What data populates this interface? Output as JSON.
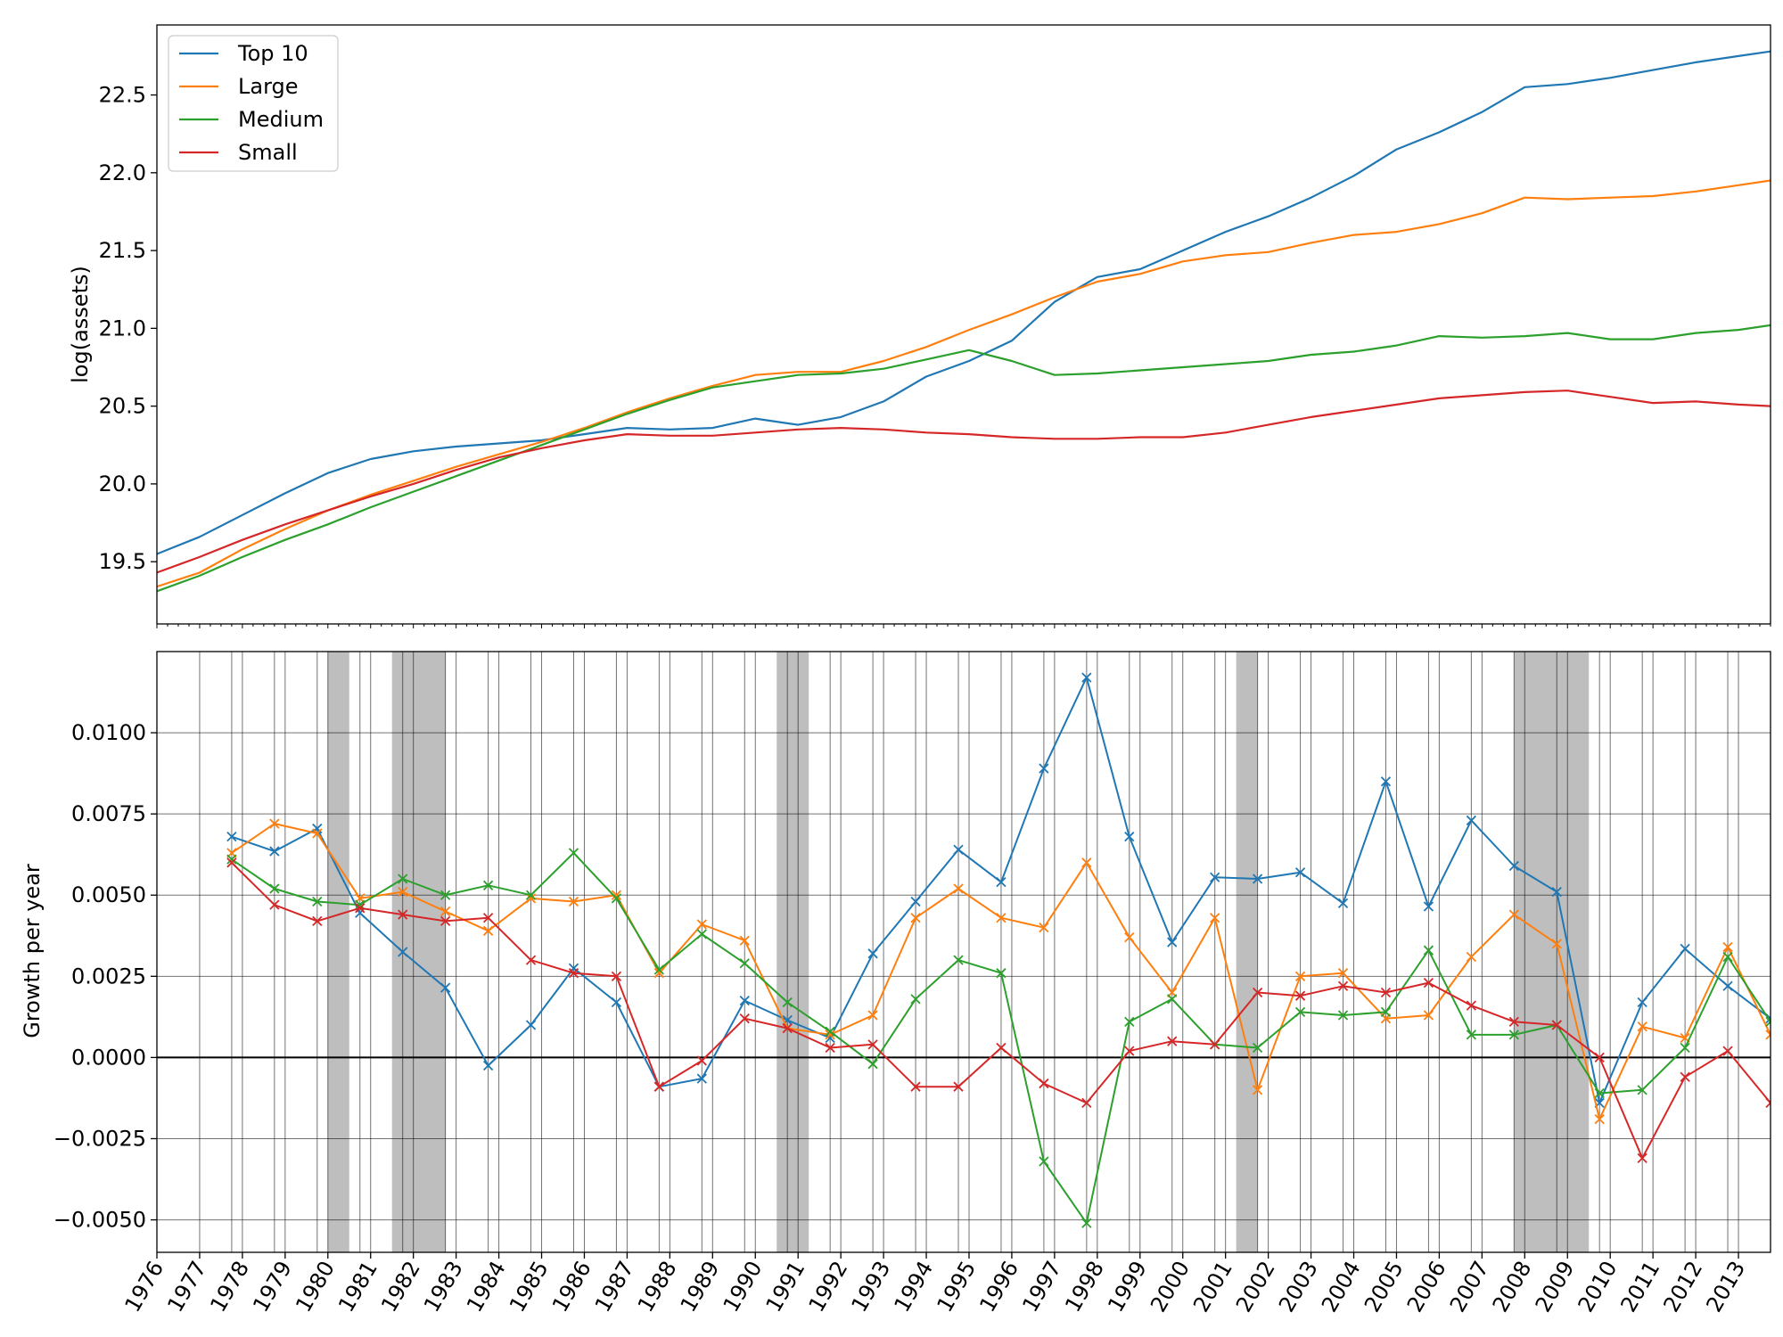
{
  "chart_data": [
    {
      "type": "line",
      "ylabel": "log(assets)",
      "xlabel": "",
      "xlim": [
        1976.0,
        2013.75
      ],
      "ylim": [
        19.1,
        22.95
      ],
      "yticks": [
        19.5,
        20.0,
        20.5,
        21.0,
        21.5,
        22.0,
        22.5
      ],
      "ytick_labels": [
        "19.5",
        "20.0",
        "20.5",
        "21.0",
        "21.5",
        "22.0",
        "22.5"
      ],
      "grid": false,
      "legend": "top-left",
      "series": [
        {
          "name": "Top 10",
          "color": "#1f77b4",
          "x": [
            1976.0,
            1977.0,
            1978.0,
            1979.0,
            1980.0,
            1981.0,
            1982.0,
            1983.0,
            1984.0,
            1985.0,
            1986.0,
            1987.0,
            1988.0,
            1989.0,
            1990.0,
            1991.0,
            1992.0,
            1993.0,
            1994.0,
            1995.0,
            1996.0,
            1997.0,
            1998.0,
            1999.0,
            2000.0,
            2001.0,
            2002.0,
            2003.0,
            2004.0,
            2005.0,
            2006.0,
            2007.0,
            2008.0,
            2009.0,
            2010.0,
            2011.0,
            2012.0,
            2013.0,
            2013.75
          ],
          "y": [
            19.55,
            19.66,
            19.8,
            19.94,
            20.07,
            20.16,
            20.21,
            20.24,
            20.26,
            20.28,
            20.32,
            20.36,
            20.35,
            20.36,
            20.42,
            20.38,
            20.43,
            20.53,
            20.69,
            20.79,
            20.92,
            21.17,
            21.33,
            21.38,
            21.5,
            21.62,
            21.72,
            21.84,
            21.98,
            22.15,
            22.26,
            22.39,
            22.55,
            22.57,
            22.61,
            22.66,
            22.71,
            22.75,
            22.78
          ]
        },
        {
          "name": "Large",
          "color": "#ff7f0e",
          "x": [
            1976.0,
            1977.0,
            1978.0,
            1979.0,
            1980.0,
            1981.0,
            1982.0,
            1983.0,
            1984.0,
            1985.0,
            1986.0,
            1987.0,
            1988.0,
            1989.0,
            1990.0,
            1991.0,
            1992.0,
            1993.0,
            1994.0,
            1995.0,
            1996.0,
            1997.0,
            1998.0,
            1999.0,
            2000.0,
            2001.0,
            2002.0,
            2003.0,
            2004.0,
            2005.0,
            2006.0,
            2007.0,
            2008.0,
            2009.0,
            2010.0,
            2011.0,
            2012.0,
            2013.0,
            2013.75
          ],
          "y": [
            19.34,
            19.43,
            19.58,
            19.71,
            19.83,
            19.93,
            20.02,
            20.11,
            20.19,
            20.27,
            20.36,
            20.46,
            20.55,
            20.63,
            20.7,
            20.72,
            20.72,
            20.79,
            20.88,
            20.99,
            21.09,
            21.2,
            21.3,
            21.35,
            21.43,
            21.47,
            21.49,
            21.55,
            21.6,
            21.62,
            21.67,
            21.74,
            21.84,
            21.83,
            21.84,
            21.85,
            21.88,
            21.92,
            21.95
          ]
        },
        {
          "name": "Medium",
          "color": "#2ca02c",
          "x": [
            1976.0,
            1977.0,
            1978.0,
            1979.0,
            1980.0,
            1981.0,
            1982.0,
            1983.0,
            1984.0,
            1985.0,
            1986.0,
            1987.0,
            1988.0,
            1989.0,
            1990.0,
            1991.0,
            1992.0,
            1993.0,
            1994.0,
            1995.0,
            1996.0,
            1997.0,
            1998.0,
            1999.0,
            2000.0,
            2001.0,
            2002.0,
            2003.0,
            2004.0,
            2005.0,
            2006.0,
            2007.0,
            2008.0,
            2009.0,
            2010.0,
            2011.0,
            2012.0,
            2013.0,
            2013.75
          ],
          "y": [
            19.31,
            19.41,
            19.53,
            19.64,
            19.74,
            19.85,
            19.95,
            20.05,
            20.15,
            20.25,
            20.35,
            20.45,
            20.54,
            20.62,
            20.66,
            20.7,
            20.71,
            20.74,
            20.8,
            20.86,
            20.79,
            20.7,
            20.71,
            20.73,
            20.75,
            20.77,
            20.79,
            20.83,
            20.85,
            20.89,
            20.95,
            20.94,
            20.95,
            20.97,
            20.93,
            20.93,
            20.97,
            20.99,
            21.02
          ]
        },
        {
          "name": "Small",
          "color": "#d62728",
          "x": [
            1976.0,
            1977.0,
            1978.0,
            1979.0,
            1980.0,
            1981.0,
            1982.0,
            1983.0,
            1984.0,
            1985.0,
            1986.0,
            1987.0,
            1988.0,
            1989.0,
            1990.0,
            1991.0,
            1992.0,
            1993.0,
            1994.0,
            1995.0,
            1996.0,
            1997.0,
            1998.0,
            1999.0,
            2000.0,
            2001.0,
            2002.0,
            2003.0,
            2004.0,
            2005.0,
            2006.0,
            2007.0,
            2008.0,
            2009.0,
            2010.0,
            2011.0,
            2012.0,
            2013.0,
            2013.75
          ],
          "y": [
            19.43,
            19.53,
            19.64,
            19.74,
            19.83,
            19.92,
            20.0,
            20.09,
            20.17,
            20.23,
            20.28,
            20.32,
            20.31,
            20.31,
            20.33,
            20.35,
            20.36,
            20.35,
            20.33,
            20.32,
            20.3,
            20.29,
            20.29,
            20.3,
            20.3,
            20.33,
            20.38,
            20.43,
            20.47,
            20.51,
            20.55,
            20.57,
            20.59,
            20.6,
            20.56,
            20.52,
            20.53,
            20.51,
            20.5
          ]
        }
      ]
    },
    {
      "type": "line",
      "ylabel": "Growth per year",
      "xlabel": "",
      "xlim": [
        1976.0,
        2013.75
      ],
      "ylim": [
        -0.006,
        0.0125
      ],
      "x_tick_labels": [
        "1976",
        "1977",
        "1978",
        "1979",
        "1980",
        "1981",
        "1982",
        "1983",
        "1984",
        "1985",
        "1986",
        "1987",
        "1988",
        "1989",
        "1990",
        "1991",
        "1992",
        "1993",
        "1994",
        "1995",
        "1996",
        "1997",
        "1998",
        "1999",
        "2000",
        "2001",
        "2002",
        "2003",
        "2004",
        "2005",
        "2006",
        "2007",
        "2008",
        "2009",
        "2010",
        "2011",
        "2012",
        "2013"
      ],
      "yticks": [
        -0.005,
        -0.0025,
        0.0,
        0.0025,
        0.005,
        0.0075,
        0.01
      ],
      "ytick_labels": [
        "−0.0050",
        "−0.0025",
        "0.0000",
        "0.0025",
        "0.0050",
        "0.0075",
        "0.0100"
      ],
      "grid": true,
      "zero_line": true,
      "markers": "x",
      "shaded_periods": [
        [
          1980.0,
          1980.5
        ],
        [
          1981.5,
          1982.75
        ],
        [
          1990.5,
          1991.25
        ],
        [
          2001.25,
          2001.75
        ],
        [
          2007.75,
          2009.5
        ]
      ],
      "shade_color": "#b3b3b3",
      "x": [
        1977.75,
        1978.75,
        1979.75,
        1980.75,
        1981.75,
        1982.75,
        1983.75,
        1984.75,
        1985.75,
        1986.75,
        1987.75,
        1988.75,
        1989.75,
        1990.75,
        1991.75,
        1992.75,
        1993.75,
        1994.75,
        1995.75,
        1996.75,
        1997.75,
        1998.75,
        1999.75,
        2000.75,
        2001.75,
        2002.75,
        2003.75,
        2004.75,
        2005.75,
        2006.75,
        2007.75,
        2008.75,
        2009.75,
        2010.75,
        2011.75,
        2012.75,
        2013.75
      ],
      "series": [
        {
          "name": "Top 10",
          "color": "#1f77b4",
          "values": [
            0.0068,
            0.00635,
            0.00705,
            0.00445,
            0.00325,
            0.00215,
            -0.00025,
            0.001,
            0.00275,
            0.0017,
            -0.0009,
            -0.00065,
            0.00175,
            0.00115,
            0.0006,
            0.0032,
            0.0048,
            0.0064,
            0.0054,
            0.0089,
            0.0117,
            0.0068,
            0.00355,
            0.00555,
            0.0055,
            0.0057,
            0.00475,
            0.0085,
            0.00465,
            0.0073,
            0.0059,
            0.0051,
            -0.0014,
            0.0017,
            0.00335,
            0.0022,
            0.0012
          ]
        },
        {
          "name": "Large",
          "color": "#ff7f0e",
          "values": [
            0.0063,
            0.0072,
            0.0069,
            0.0049,
            0.0051,
            0.0045,
            0.0039,
            0.0049,
            0.0048,
            0.005,
            0.0026,
            0.0041,
            0.0036,
            0.0009,
            0.0007,
            0.0013,
            0.0043,
            0.0052,
            0.0043,
            0.004,
            0.006,
            0.0037,
            0.002,
            0.0043,
            -0.001,
            0.0025,
            0.0026,
            0.0012,
            0.0013,
            0.0031,
            0.0044,
            0.0035,
            -0.0019,
            0.00095,
            0.0006,
            0.0034,
            0.0007
          ]
        },
        {
          "name": "Medium",
          "color": "#2ca02c",
          "values": [
            0.0061,
            0.0052,
            0.0048,
            0.0047,
            0.0055,
            0.005,
            0.0053,
            0.005,
            0.0063,
            0.0049,
            0.0027,
            0.0038,
            0.0029,
            0.0017,
            0.0008,
            -0.0002,
            0.0018,
            0.003,
            0.0026,
            -0.0032,
            -0.0051,
            0.0011,
            0.0018,
            0.0004,
            0.0003,
            0.0014,
            0.0013,
            0.0014,
            0.0033,
            0.0007,
            0.0007,
            0.001,
            -0.0011,
            -0.001,
            0.0003,
            0.0031,
            0.0011
          ]
        },
        {
          "name": "Small",
          "color": "#d62728",
          "values": [
            0.006,
            0.0047,
            0.0042,
            0.0046,
            0.0044,
            0.0042,
            0.0043,
            0.003,
            0.0026,
            0.0025,
            -0.0009,
            -0.0001,
            0.0012,
            0.0009,
            0.0003,
            0.0004,
            -0.0009,
            -0.0009,
            0.0003,
            -0.0008,
            -0.0014,
            0.0002,
            0.0005,
            0.0004,
            0.002,
            0.0019,
            0.0022,
            0.002,
            0.0023,
            0.0016,
            0.0011,
            0.001,
            0.0,
            -0.0031,
            -0.0006,
            0.0002,
            -0.0014
          ]
        }
      ]
    }
  ]
}
